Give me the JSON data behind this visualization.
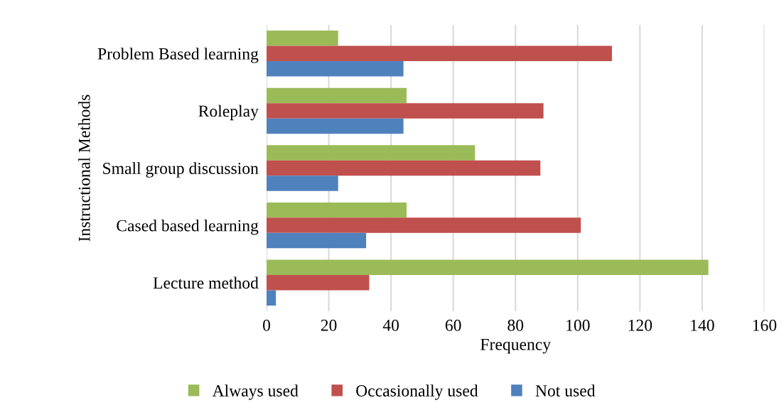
{
  "chart_data": {
    "type": "bar",
    "orientation": "horizontal",
    "xlabel": "Frequency",
    "ylabel": "Instructional Methods",
    "categories": [
      "Problem Based learning",
      "Roleplay",
      "Small group discussion",
      "Cased based learning",
      "Lecture method"
    ],
    "series": [
      {
        "name": "Always used",
        "color": "#9bbb59",
        "values": [
          23,
          45,
          67,
          45,
          142
        ]
      },
      {
        "name": "Occasionally used",
        "color": "#c0504d",
        "values": [
          111,
          89,
          88,
          101,
          33
        ]
      },
      {
        "name": "Not used",
        "color": "#4f81bd",
        "values": [
          44,
          44,
          23,
          32,
          3
        ]
      }
    ],
    "xlim": [
      0,
      160
    ],
    "xticks": [
      0,
      20,
      40,
      60,
      80,
      100,
      120,
      140,
      160
    ],
    "grid": "x",
    "legend": "bottom"
  }
}
